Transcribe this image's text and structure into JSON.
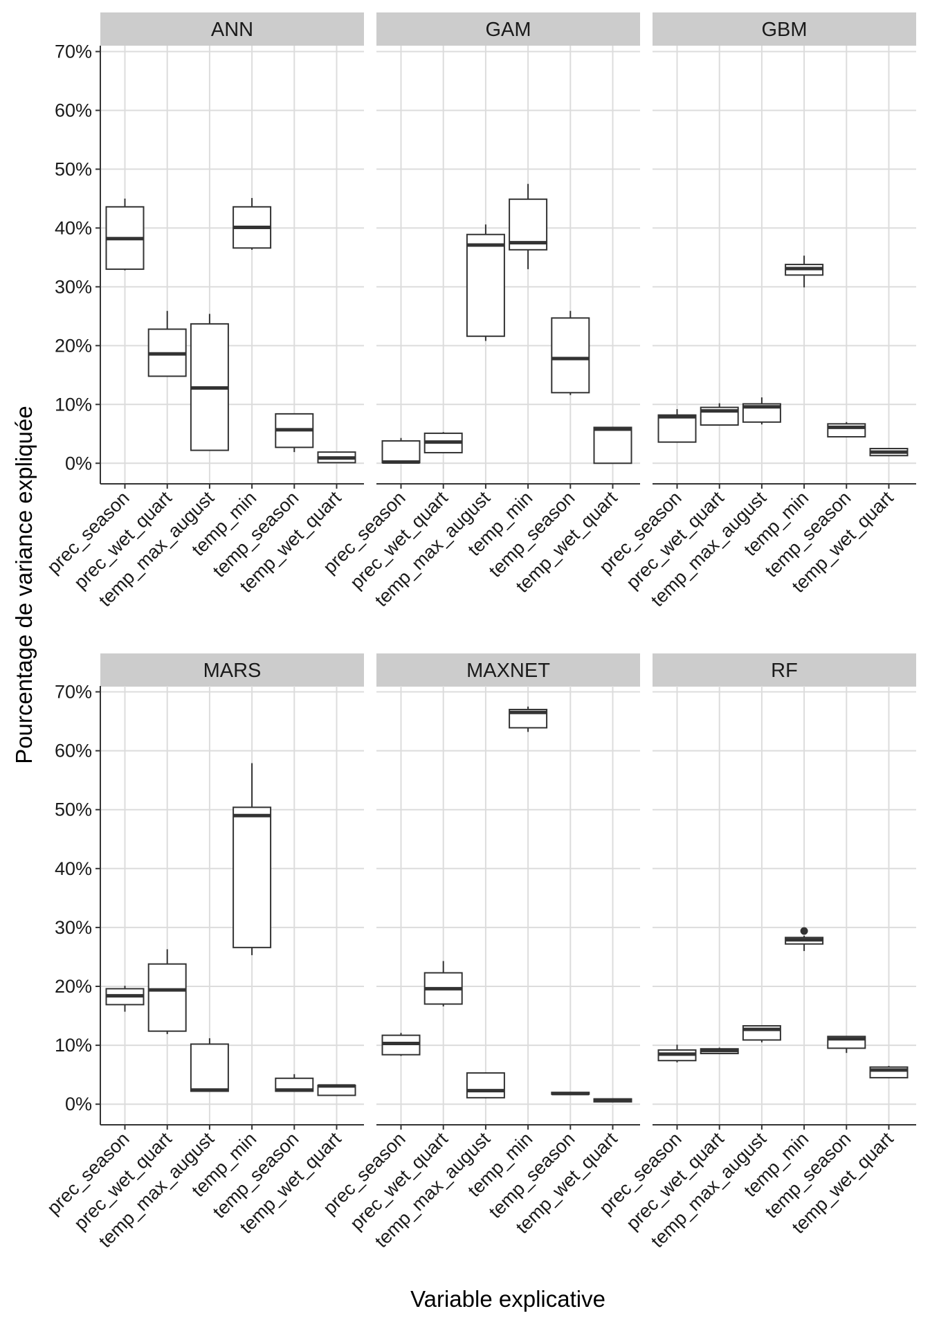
{
  "chart_data": {
    "type": "boxplot",
    "xlabel": "Variable explicative",
    "ylabel": "Pourcentage de variance expliquée",
    "ylim": [
      -3.5,
      71
    ],
    "y_ticks": [
      0,
      10,
      20,
      30,
      40,
      50,
      60,
      70
    ],
    "y_tick_labels": [
      "0%",
      "10%",
      "20%",
      "30%",
      "40%",
      "50%",
      "60%",
      "70%"
    ],
    "categories": [
      "prec_season",
      "prec_wet_quart",
      "temp_max_august",
      "temp_min",
      "temp_season",
      "temp_wet_quart"
    ],
    "facets": [
      {
        "name": "ANN",
        "boxes": [
          {
            "category": "prec_season",
            "min": 32.8,
            "q1": 33.0,
            "median": 38.2,
            "q3": 43.6,
            "max": 45.0
          },
          {
            "category": "prec_wet_quart",
            "min": 14.8,
            "q1": 14.8,
            "median": 18.6,
            "q3": 22.8,
            "max": 25.9
          },
          {
            "category": "temp_max_august",
            "min": 2.2,
            "q1": 2.2,
            "median": 12.8,
            "q3": 23.7,
            "max": 25.4
          },
          {
            "category": "temp_min",
            "min": 36.3,
            "q1": 36.6,
            "median": 40.1,
            "q3": 43.6,
            "max": 45.1
          },
          {
            "category": "temp_season",
            "min": 1.9,
            "q1": 2.7,
            "median": 5.7,
            "q3": 8.4,
            "max": 8.4
          },
          {
            "category": "temp_wet_quart",
            "min": 0.0,
            "q1": 0.1,
            "median": 0.9,
            "q3": 1.9,
            "max": 1.9
          }
        ]
      },
      {
        "name": "GAM",
        "boxes": [
          {
            "category": "prec_season",
            "min": 0.0,
            "q1": 0.1,
            "median": 0.2,
            "q3": 3.8,
            "max": 4.3
          },
          {
            "category": "prec_wet_quart",
            "min": 1.8,
            "q1": 1.8,
            "median": 3.6,
            "q3": 5.1,
            "max": 5.3
          },
          {
            "category": "temp_max_august",
            "min": 20.8,
            "q1": 21.6,
            "median": 37.1,
            "q3": 38.9,
            "max": 40.6
          },
          {
            "category": "temp_min",
            "min": 33.0,
            "q1": 36.3,
            "median": 37.5,
            "q3": 44.9,
            "max": 47.5
          },
          {
            "category": "temp_season",
            "min": 11.6,
            "q1": 12.0,
            "median": 17.8,
            "q3": 24.7,
            "max": 25.9
          },
          {
            "category": "temp_wet_quart",
            "min": 0.0,
            "q1": 0.0,
            "median": 5.8,
            "q3": 6.1,
            "max": 6.2
          }
        ]
      },
      {
        "name": "GBM",
        "boxes": [
          {
            "category": "prec_season",
            "min": 3.5,
            "q1": 3.6,
            "median": 7.9,
            "q3": 8.2,
            "max": 9.2
          },
          {
            "category": "prec_wet_quart",
            "min": 6.5,
            "q1": 6.5,
            "median": 8.9,
            "q3": 9.5,
            "max": 10.2
          },
          {
            "category": "temp_max_august",
            "min": 6.6,
            "q1": 7.0,
            "median": 9.6,
            "q3": 10.1,
            "max": 11.2
          },
          {
            "category": "temp_min",
            "min": 29.9,
            "q1": 32.0,
            "median": 33.1,
            "q3": 33.8,
            "max": 35.3
          },
          {
            "category": "temp_season",
            "min": 4.5,
            "q1": 4.5,
            "median": 6.1,
            "q3": 6.7,
            "max": 7.0
          },
          {
            "category": "temp_wet_quart",
            "min": 1.2,
            "q1": 1.3,
            "median": 1.9,
            "q3": 2.5,
            "max": 2.6
          }
        ]
      },
      {
        "name": "MARS",
        "boxes": [
          {
            "category": "prec_season",
            "min": 15.7,
            "q1": 16.9,
            "median": 18.4,
            "q3": 19.6,
            "max": 20.1
          },
          {
            "category": "prec_wet_quart",
            "min": 11.9,
            "q1": 12.4,
            "median": 19.4,
            "q3": 23.8,
            "max": 26.3
          },
          {
            "category": "temp_max_august",
            "min": 2.2,
            "q1": 2.2,
            "median": 2.4,
            "q3": 10.2,
            "max": 11.2
          },
          {
            "category": "temp_min",
            "min": 25.3,
            "q1": 26.6,
            "median": 49.0,
            "q3": 50.4,
            "max": 57.9
          },
          {
            "category": "temp_season",
            "min": 2.2,
            "q1": 2.2,
            "median": 2.4,
            "q3": 4.4,
            "max": 5.1
          },
          {
            "category": "temp_wet_quart",
            "min": 1.5,
            "q1": 1.5,
            "median": 3.1,
            "q3": 3.2,
            "max": 3.3
          }
        ]
      },
      {
        "name": "MAXNET",
        "boxes": [
          {
            "category": "prec_season",
            "min": 8.2,
            "q1": 8.4,
            "median": 10.3,
            "q3": 11.7,
            "max": 12.1
          },
          {
            "category": "prec_wet_quart",
            "min": 16.6,
            "q1": 17.0,
            "median": 19.6,
            "q3": 22.3,
            "max": 24.3
          },
          {
            "category": "temp_max_august",
            "min": 1.0,
            "q1": 1.1,
            "median": 2.3,
            "q3": 5.3,
            "max": 5.4
          },
          {
            "category": "temp_min",
            "min": 63.2,
            "q1": 63.9,
            "median": 66.5,
            "q3": 67.0,
            "max": 67.5
          },
          {
            "category": "temp_season",
            "min": 1.6,
            "q1": 1.7,
            "median": 1.8,
            "q3": 2.0,
            "max": 2.0
          },
          {
            "category": "temp_wet_quart",
            "min": 0.4,
            "q1": 0.4,
            "median": 0.7,
            "q3": 0.9,
            "max": 1.0
          }
        ]
      },
      {
        "name": "RF",
        "boxes": [
          {
            "category": "prec_season",
            "min": 7.1,
            "q1": 7.4,
            "median": 8.5,
            "q3": 9.2,
            "max": 10.1
          },
          {
            "category": "prec_wet_quart",
            "min": 8.5,
            "q1": 8.6,
            "median": 9.1,
            "q3": 9.4,
            "max": 9.6
          },
          {
            "category": "temp_max_august",
            "min": 10.5,
            "q1": 10.9,
            "median": 12.7,
            "q3": 13.3,
            "max": 13.4
          },
          {
            "category": "temp_min",
            "min": 26.0,
            "q1": 27.2,
            "median": 27.9,
            "q3": 28.3,
            "max": 28.6,
            "outliers": [
              29.4
            ]
          },
          {
            "category": "temp_season",
            "min": 8.7,
            "q1": 9.5,
            "median": 11.1,
            "q3": 11.5,
            "max": 11.5
          },
          {
            "category": "temp_wet_quart",
            "min": 4.5,
            "q1": 4.5,
            "median": 5.8,
            "q3": 6.3,
            "max": 6.5
          }
        ]
      }
    ]
  }
}
